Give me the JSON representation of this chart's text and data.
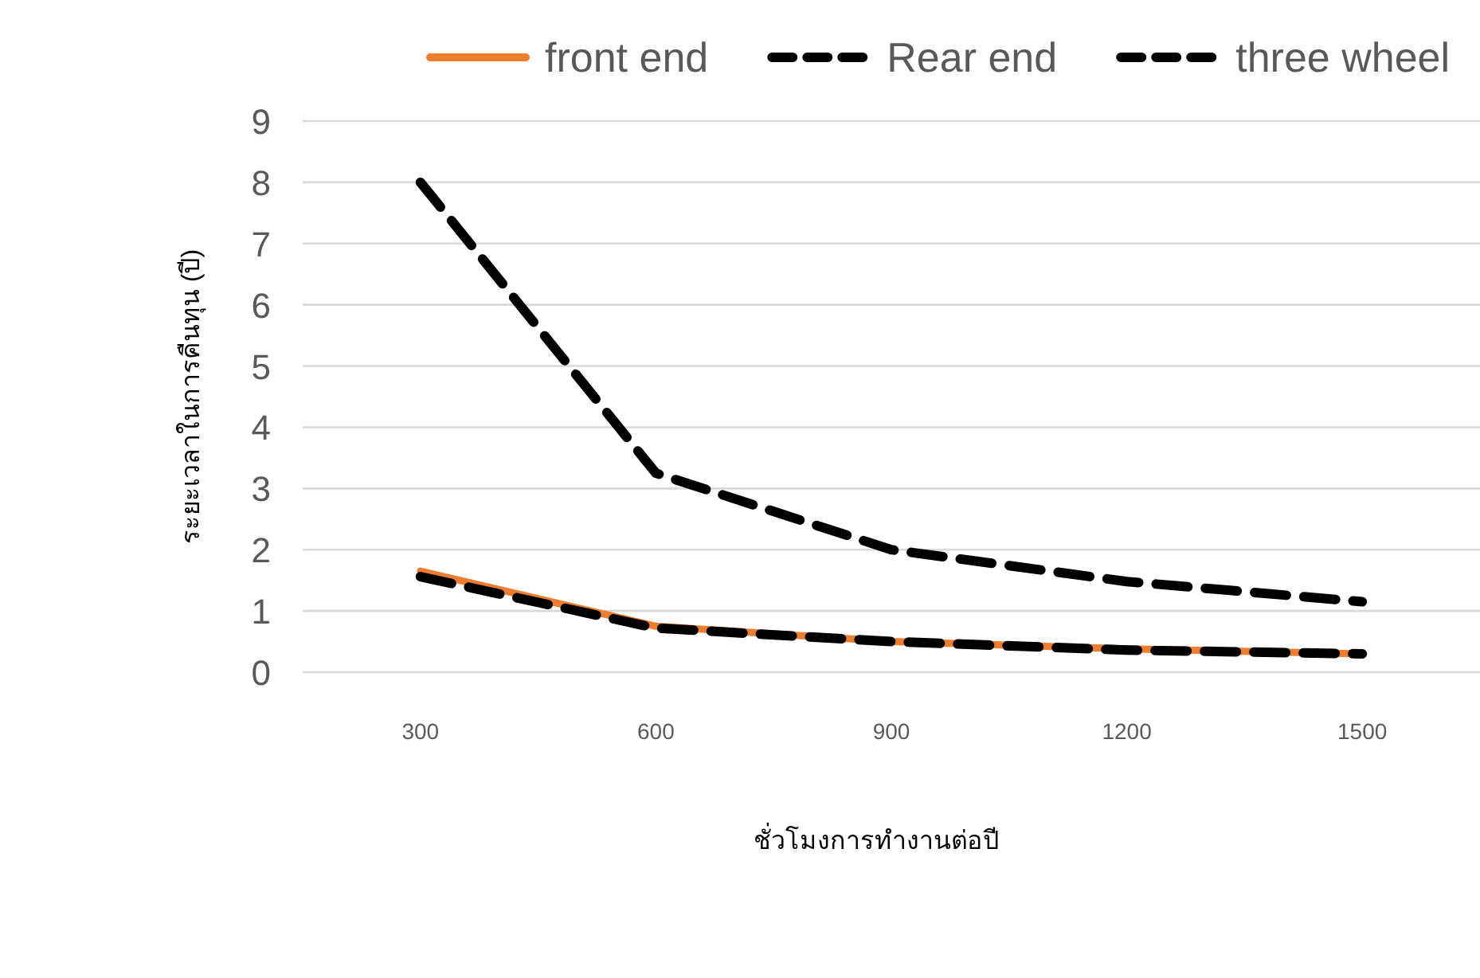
{
  "chart_data": {
    "type": "line",
    "xlabel": "ชั่วโมงการทำงานต่อปี",
    "ylabel": "ระยะเวลาในการคืนทุน (ปี)",
    "x": [
      300,
      600,
      900,
      1200,
      1500
    ],
    "series": [
      {
        "name": "front end",
        "color": "#ed7d31",
        "line_style": "solid",
        "values": [
          1.65,
          0.75,
          0.5,
          0.38,
          0.3
        ]
      },
      {
        "name": "Rear end",
        "color": "#000000",
        "line_style": "dashed",
        "values": [
          8.0,
          3.25,
          2.0,
          1.48,
          1.15
        ]
      },
      {
        "name": "three wheel",
        "color": "#000000",
        "line_style": "dashed",
        "values": [
          1.56,
          0.72,
          0.5,
          0.36,
          0.3
        ]
      }
    ],
    "xlim": [
      150,
      1650
    ],
    "xticks": [
      300,
      600,
      900,
      1200,
      1500
    ],
    "ylim": [
      0,
      9
    ],
    "yticks": [
      0,
      1,
      2,
      3,
      4,
      5,
      6,
      7,
      8,
      9
    ],
    "grid": "y",
    "legend": "top",
    "marker": "none"
  }
}
